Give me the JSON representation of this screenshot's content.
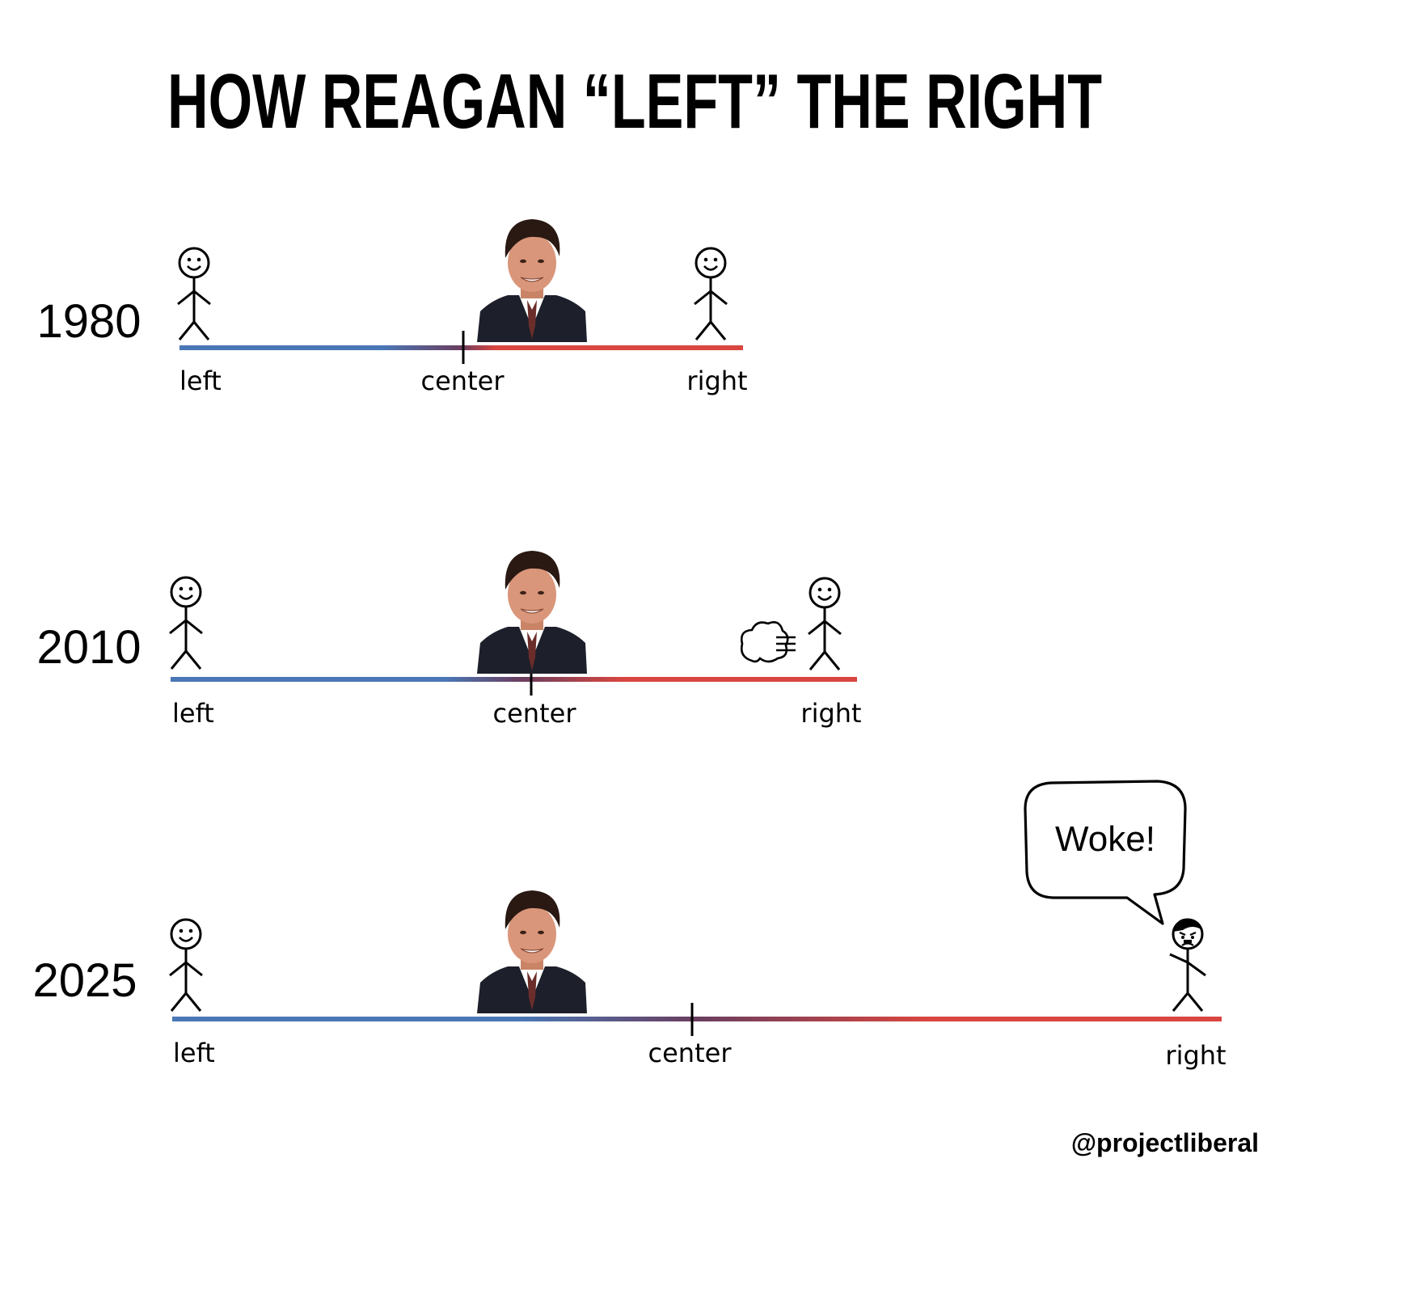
{
  "title": "HOW REAGAN “LEFT” THE RIGHT",
  "watermark": "@projectliberal",
  "colors": {
    "left": "#4a77b5",
    "right": "#d9463f",
    "blend": "#6a3e5f",
    "ink": "#000000",
    "suit": "#1d1f2a",
    "skin": "#d9967a",
    "hair": "#2a1812",
    "tie": "#6b2d2a"
  },
  "timelines": [
    {
      "year": "1980",
      "labels": {
        "left": "left",
        "center": "center",
        "right": "right"
      }
    },
    {
      "year": "2010",
      "labels": {
        "left": "left",
        "center": "center",
        "right": "right"
      }
    },
    {
      "year": "2025",
      "labels": {
        "left": "left",
        "center": "center",
        "right": "right"
      }
    }
  ],
  "speech_bubble": {
    "text": "Woke!"
  }
}
